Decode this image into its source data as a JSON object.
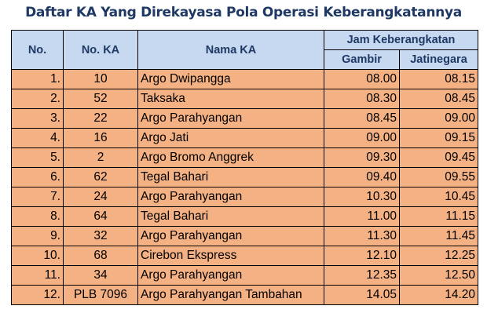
{
  "title": "Daftar KA Yang Direkayasa Pola Operasi Keberangkatannya",
  "table": {
    "header": {
      "no": "No.",
      "no_ka": "No. KA",
      "nama_ka": "Nama KA",
      "jam": "Jam Keberangkatan",
      "gambir": "Gambir",
      "jatinegara": "Jatinegara"
    },
    "rows": [
      [
        "1.",
        "10",
        "Argo Dwipangga",
        "08.00",
        "08.15"
      ],
      [
        "2.",
        "52",
        "Taksaka",
        "08.30",
        "08.45"
      ],
      [
        "3.",
        "22",
        "Argo Parahyangan",
        "08.45",
        "09.00"
      ],
      [
        "4.",
        "16",
        "Argo Jati",
        "09.00",
        "09.15"
      ],
      [
        "5.",
        "2",
        "Argo Bromo Anggrek",
        "09.30",
        "09.45"
      ],
      [
        "6.",
        "62",
        "Tegal Bahari",
        "09.40",
        "09.55"
      ],
      [
        "7.",
        "24",
        "Argo Parahyangan",
        "10.30",
        "10.45"
      ],
      [
        "8.",
        "64",
        "Tegal Bahari",
        "11.00",
        "11.15"
      ],
      [
        "9.",
        "32",
        "Argo Parahyangan",
        "11.30",
        "11.45"
      ],
      [
        "10.",
        "68",
        "Cirebon Ekspress",
        "12.10",
        "12.25"
      ],
      [
        "11.",
        "34",
        "Argo Parahyangan",
        "12.35",
        "12.50"
      ],
      [
        "12.",
        "PLB 7096",
        "Argo Parahyangan Tambahan",
        "14.05",
        "14.20"
      ]
    ]
  }
}
